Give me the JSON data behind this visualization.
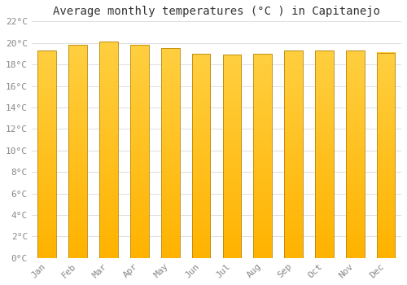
{
  "title": "Average monthly temperatures (°C ) in Capitanejo",
  "months": [
    "Jan",
    "Feb",
    "Mar",
    "Apr",
    "May",
    "Jun",
    "Jul",
    "Aug",
    "Sep",
    "Oct",
    "Nov",
    "Dec"
  ],
  "values": [
    19.3,
    19.8,
    20.1,
    19.8,
    19.5,
    19.0,
    18.9,
    19.0,
    19.3,
    19.3,
    19.3,
    19.1
  ],
  "bar_color_bottom": "#FFB300",
  "bar_color_top": "#FFCF40",
  "bar_edge_color": "#B8860B",
  "ylim": [
    0,
    22
  ],
  "ytick_step": 2,
  "background_color": "#ffffff",
  "grid_color": "#dddddd",
  "title_fontsize": 10,
  "tick_fontsize": 8,
  "bar_width": 0.6,
  "tick_color": "#888888"
}
